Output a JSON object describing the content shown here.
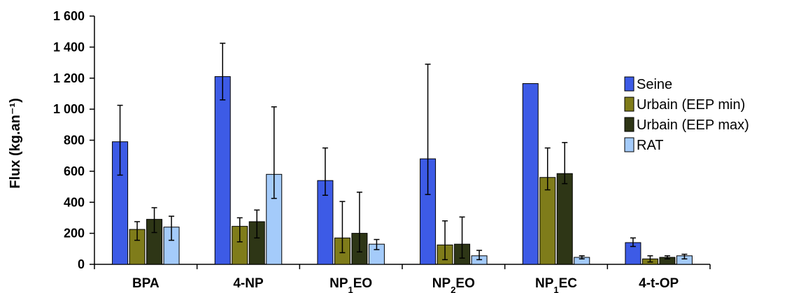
{
  "chart_data": {
    "type": "bar",
    "title": "",
    "xlabel": "",
    "ylabel": "Flux (kg.an⁻¹)",
    "ylim": [
      0,
      1600
    ],
    "yticks": [
      0,
      200,
      400,
      600,
      800,
      1000,
      1200,
      1400,
      1600
    ],
    "ytick_labels": [
      "0",
      "200",
      "400",
      "600",
      "800",
      "1 000",
      "1 200",
      "1 400",
      "1 600"
    ],
    "categories": [
      "BPA",
      "4-NP",
      "NP₁EO",
      "NP₂EO",
      "NP₁EC",
      "4-t-OP"
    ],
    "legend_position": "right",
    "grid": false,
    "series": [
      {
        "name": "Seine",
        "color": "#3D5BE6",
        "values": [
          790,
          1210,
          540,
          680,
          1165,
          140
        ],
        "error_low": [
          575,
          1060,
          445,
          450,
          null,
          115
        ],
        "error_high": [
          1025,
          1425,
          750,
          1290,
          null,
          170
        ]
      },
      {
        "name": "Urbain (EEP min)",
        "color": "#7F7C1A",
        "values": [
          225,
          245,
          170,
          125,
          560,
          35
        ],
        "error_low": [
          155,
          145,
          75,
          30,
          480,
          15
        ],
        "error_high": [
          275,
          300,
          405,
          280,
          750,
          55
        ]
      },
      {
        "name": "Urbain (EEP max)",
        "color": "#2E3616",
        "values": [
          290,
          275,
          200,
          130,
          585,
          45
        ],
        "error_low": [
          205,
          170,
          80,
          40,
          520,
          35
        ],
        "error_high": [
          365,
          350,
          465,
          305,
          785,
          55
        ]
      },
      {
        "name": "RAT",
        "color": "#A4CBFA",
        "values": [
          240,
          580,
          130,
          55,
          45,
          55
        ],
        "error_low": [
          155,
          425,
          95,
          30,
          35,
          35
        ],
        "error_high": [
          310,
          1015,
          160,
          90,
          55,
          65
        ]
      }
    ]
  }
}
